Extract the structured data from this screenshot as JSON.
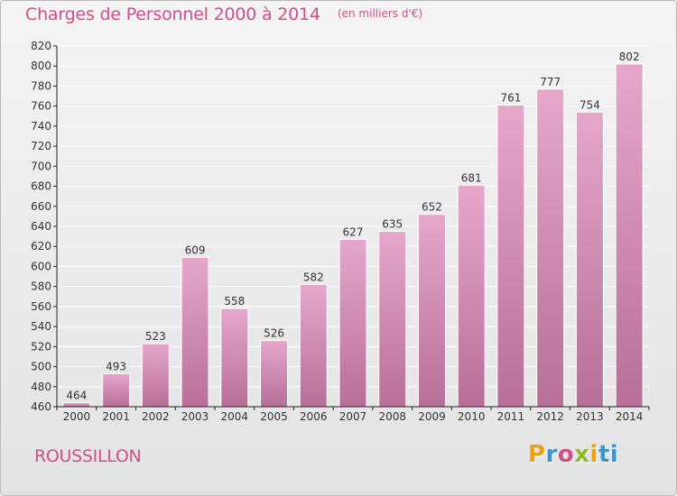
{
  "title": "Charges de Personnel 2000 à 2014",
  "subtitle": "(en milliers d'€)",
  "entity": "ROUSSILLON",
  "logo_text": [
    "P",
    "r",
    "o",
    "x",
    "i",
    "ti"
  ],
  "colors": {
    "title": "#d24f86",
    "bar_top": "#e6a7cb",
    "bar_bottom": "#b76f98",
    "grid": "#ffffff",
    "axis": "#222222"
  },
  "chart_data": {
    "type": "bar",
    "categories": [
      "2000",
      "2001",
      "2002",
      "2003",
      "2004",
      "2005",
      "2006",
      "2007",
      "2008",
      "2009",
      "2010",
      "2011",
      "2012",
      "2013",
      "2014"
    ],
    "values": [
      464,
      493,
      523,
      609,
      558,
      526,
      582,
      627,
      635,
      652,
      681,
      761,
      777,
      754,
      802
    ],
    "ylim": [
      460,
      820
    ],
    "yticks": [
      460,
      480,
      500,
      520,
      540,
      560,
      580,
      600,
      620,
      640,
      660,
      680,
      700,
      720,
      740,
      760,
      780,
      800,
      820
    ],
    "grid": true,
    "data_labels": true
  }
}
